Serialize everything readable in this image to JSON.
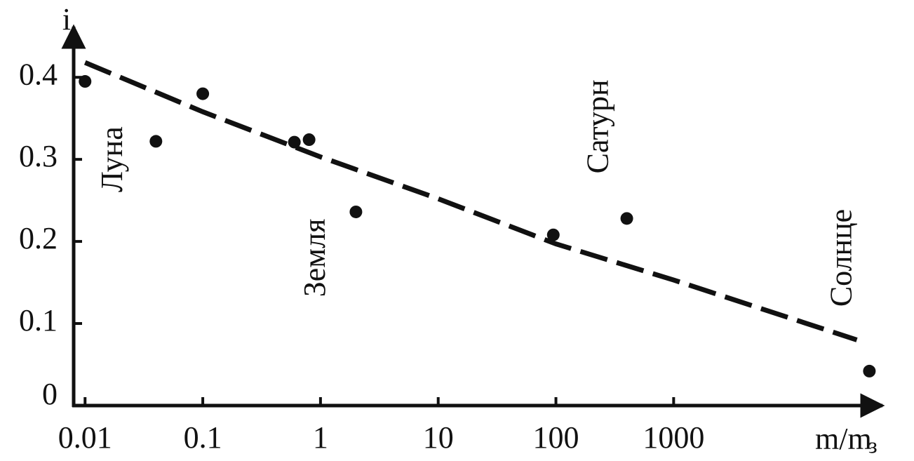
{
  "chart_data": {
    "type": "scatter",
    "ylabel": "i",
    "xlabel": "m/m",
    "xlabel_subscript": "з",
    "log_x": true,
    "xlim": [
      0.008,
      57000
    ],
    "ylim": [
      0,
      0.46
    ],
    "xticks": [
      0.01,
      0.1,
      1,
      10,
      100,
      1000
    ],
    "yticks": [
      0,
      0.1,
      0.2,
      0.3,
      0.4
    ],
    "color": "#111111",
    "x": [
      0.01,
      0.04,
      0.1,
      0.6,
      0.8,
      2,
      95,
      400,
      46000
    ],
    "values": [
      0.395,
      0.322,
      0.38,
      0.321,
      0.324,
      0.236,
      0.208,
      0.228,
      0.042
    ],
    "fit": {
      "x": [
        0.01,
        0.1,
        1,
        10,
        100,
        1000,
        36000
      ],
      "values": [
        0.418,
        0.358,
        0.303,
        0.252,
        0.197,
        0.153,
        0.08
      ]
    },
    "annotations": [
      {
        "text": "Луна",
        "x": 0.018,
        "y": 0.3
      },
      {
        "text": "Земля",
        "x": 0.95,
        "y": 0.18
      },
      {
        "text": "Сатурн",
        "x": 240,
        "y": 0.34
      },
      {
        "text": "Солнце",
        "x": 28000,
        "y": 0.18
      }
    ]
  }
}
